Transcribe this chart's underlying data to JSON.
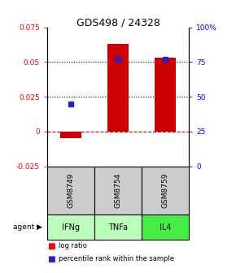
{
  "title": "GDS498 / 24328",
  "samples": [
    "GSM8749",
    "GSM8754",
    "GSM8759"
  ],
  "agents": [
    "IFNg",
    "TNFa",
    "IL4"
  ],
  "log_ratios": [
    -0.005,
    0.063,
    0.053
  ],
  "percentile_ranks_pct": [
    45,
    77,
    77
  ],
  "ylim_left": [
    -0.025,
    0.075
  ],
  "yticks_left": [
    -0.025,
    0,
    0.025,
    0.05,
    0.075
  ],
  "ytick_labels_left": [
    "-0.025",
    "0",
    "0.025",
    "0.05",
    "0.075"
  ],
  "ylim_right": [
    0,
    100
  ],
  "yticks_right": [
    0,
    25,
    50,
    75,
    100
  ],
  "ytick_labels_right": [
    "0",
    "25",
    "50",
    "75",
    "100%"
  ],
  "bar_color": "#cc0000",
  "dot_color": "#2222cc",
  "hline_color": "#cc0000",
  "agent_colors": [
    "#bbffbb",
    "#bbffbb",
    "#44ee44"
  ],
  "sample_box_color": "#cccccc",
  "bar_width": 0.45,
  "x_positions": [
    1,
    2,
    3
  ],
  "legend_bar_label": "log ratio",
  "legend_dot_label": "percentile rank within the sample"
}
